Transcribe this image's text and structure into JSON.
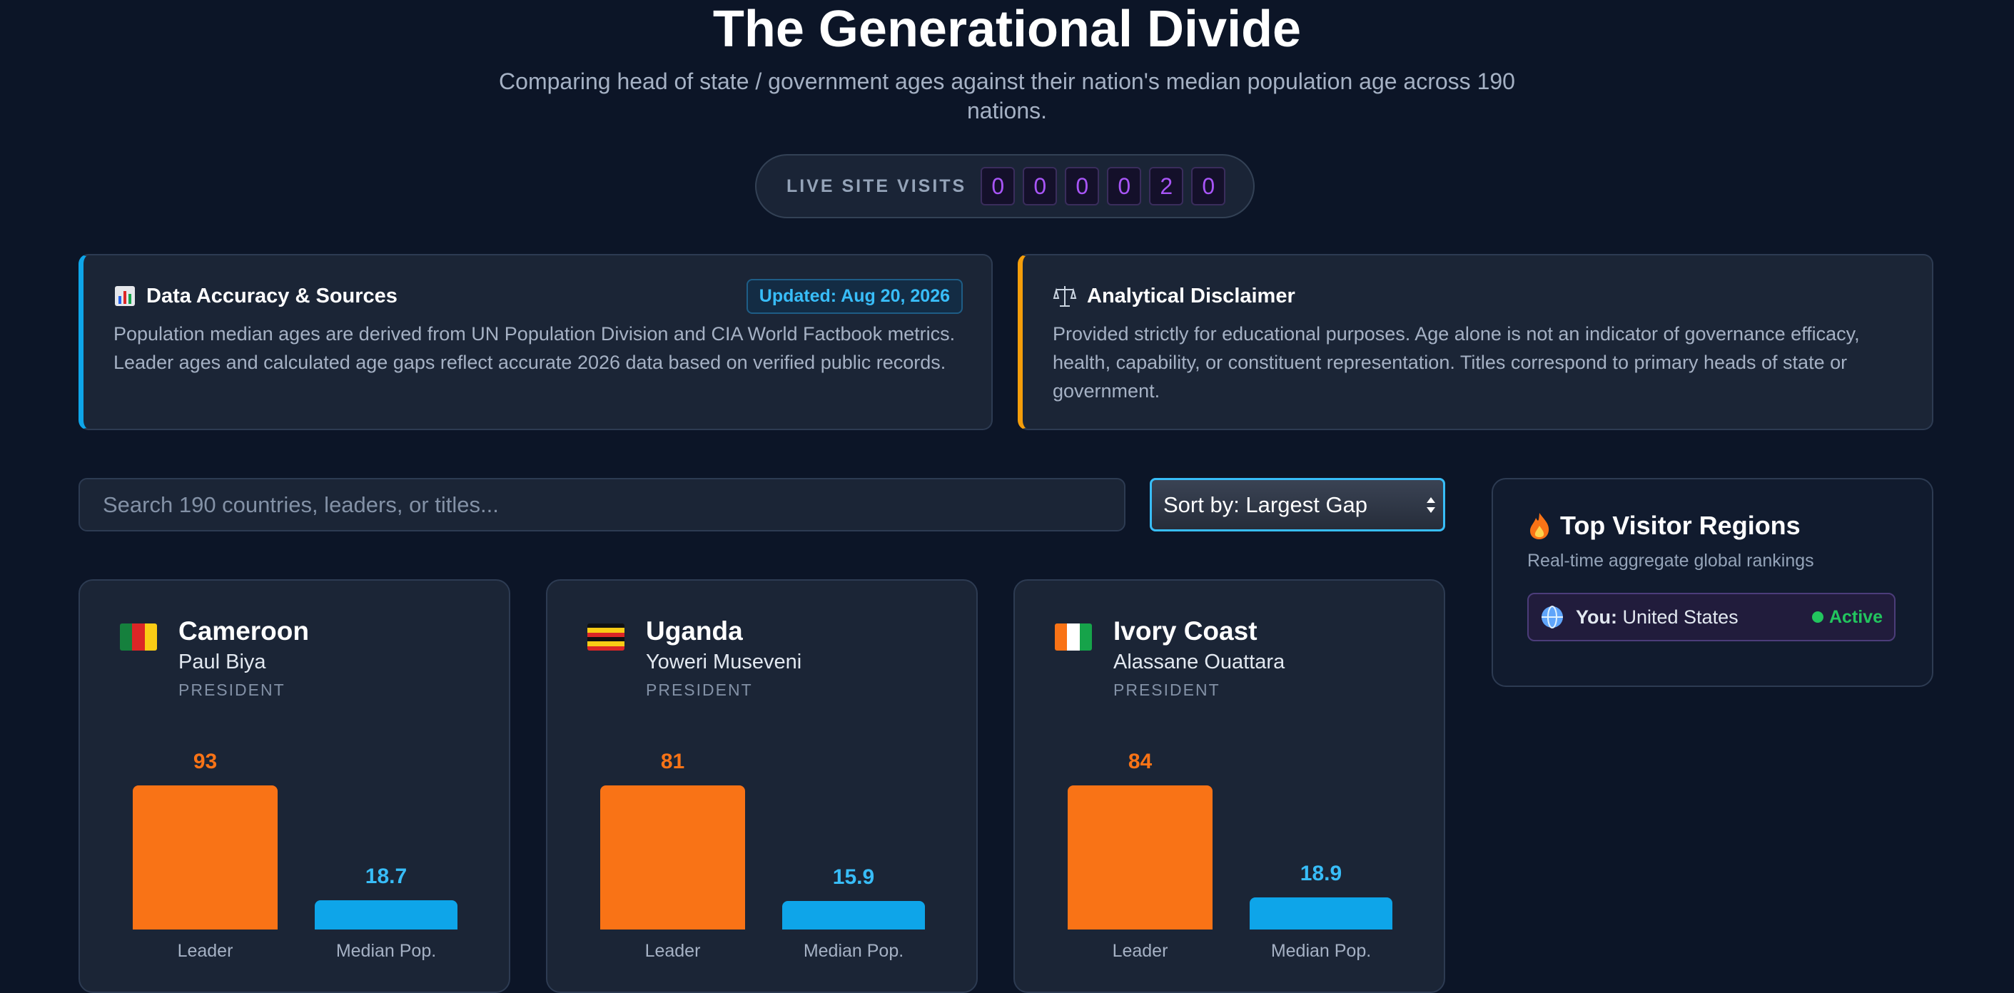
{
  "header": {
    "title": "The Generational Divide",
    "subtitle": "Comparing head of state / government ages against their nation's median population age across 190 nations."
  },
  "visits": {
    "label": "LIVE SITE VISITS",
    "digits": [
      "0",
      "0",
      "0",
      "0",
      "2",
      "0"
    ]
  },
  "notices": [
    {
      "title": "Data Accuracy & Sources",
      "badge": "Updated: Aug 20, 2026",
      "text": "Population median ages are derived from UN Population Division and CIA World Factbook metrics. Leader ages and calculated age gaps reflect accurate 2026 data based on verified public records."
    },
    {
      "title": "Analytical Disclaimer",
      "text": "Provided strictly for educational purposes. Age alone is not an indicator of governance efficacy, health, capability, or constituent representation. Titles correspond to primary heads of state or government."
    }
  ],
  "controls": {
    "search_placeholder": "Search 190 countries, leaders, or titles...",
    "sort": "Sort by: Largest Gap"
  },
  "bar_labels": [
    "Leader",
    "Median Pop."
  ],
  "countries": [
    {
      "country": "Cameroon",
      "leader": "Paul Biya",
      "title": "PRESIDENT",
      "leader_age": 93,
      "median_age": 18.7
    },
    {
      "country": "Uganda",
      "leader": "Yoweri Museveni",
      "title": "PRESIDENT",
      "leader_age": 81,
      "median_age": 15.9
    },
    {
      "country": "Ivory Coast",
      "leader": "Alassane Ouattara",
      "title": "PRESIDENT",
      "leader_age": 84,
      "median_age": 18.9
    }
  ],
  "visitors": {
    "title": "Top Visitor Regions",
    "subtitle": "Real-time aggregate global rankings",
    "rows": [
      {
        "label": "You:",
        "country": "United States",
        "status": "Active"
      }
    ]
  }
}
